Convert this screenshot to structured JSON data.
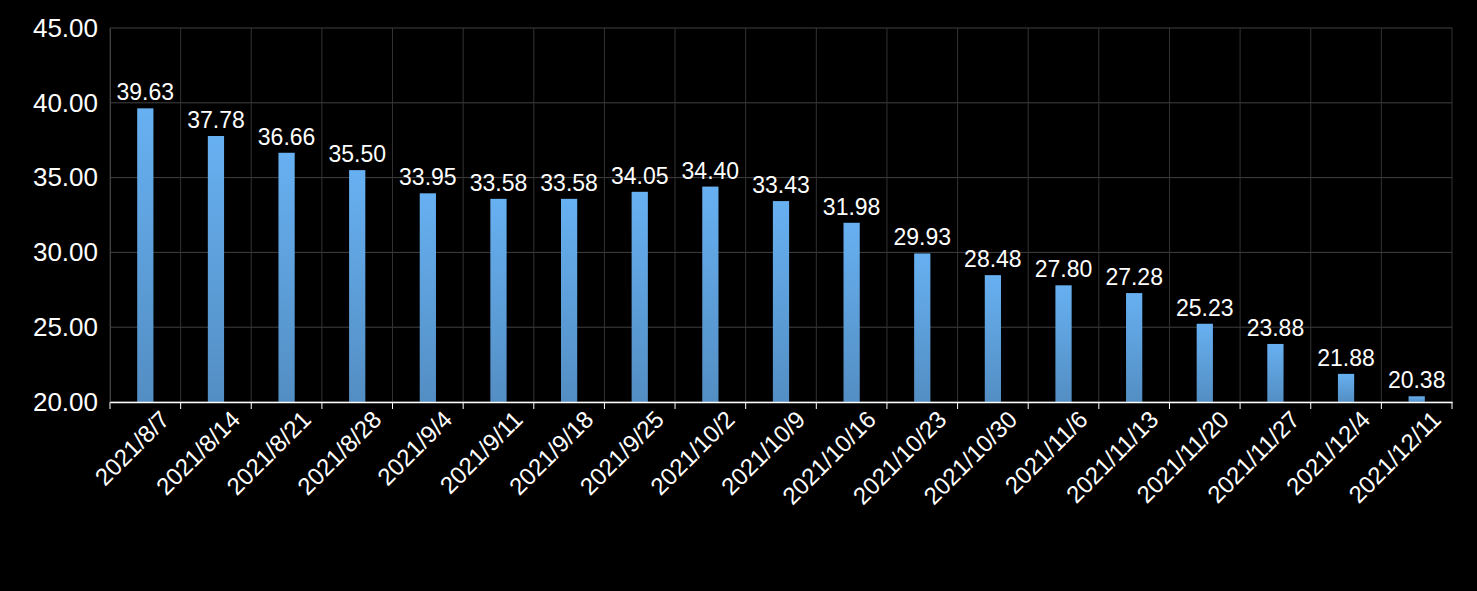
{
  "chart_data": {
    "type": "bar",
    "categories": [
      "2021/8/7",
      "2021/8/14",
      "2021/8/21",
      "2021/8/28",
      "2021/9/4",
      "2021/9/11",
      "2021/9/18",
      "2021/9/25",
      "2021/10/2",
      "2021/10/9",
      "2021/10/16",
      "2021/10/23",
      "2021/10/30",
      "2021/11/6",
      "2021/11/13",
      "2021/11/20",
      "2021/11/27",
      "2021/12/4",
      "2021/12/11"
    ],
    "values": [
      39.63,
      37.78,
      36.66,
      35.5,
      33.95,
      33.58,
      33.58,
      34.05,
      34.4,
      33.43,
      31.98,
      29.93,
      28.48,
      27.8,
      27.28,
      25.23,
      23.88,
      21.88,
      20.38
    ],
    "value_labels": [
      "39.63",
      "37.78",
      "36.66",
      "35.50",
      "33.95",
      "33.58",
      "33.58",
      "34.05",
      "34.40",
      "33.43",
      "31.98",
      "29.93",
      "28.48",
      "27.80",
      "27.28",
      "25.23",
      "23.88",
      "21.88",
      "20.38"
    ],
    "color": "#5b9bd5",
    "ylim": [
      20,
      45
    ],
    "yticks": [
      {
        "value": 20,
        "label": "20.00"
      },
      {
        "value": 25,
        "label": "25.00"
      },
      {
        "value": 30,
        "label": "30.00"
      },
      {
        "value": 35,
        "label": "35.00"
      },
      {
        "value": 40,
        "label": "40.00"
      },
      {
        "value": 45,
        "label": "45.00"
      }
    ],
    "grid": true,
    "data_labels": true
  }
}
